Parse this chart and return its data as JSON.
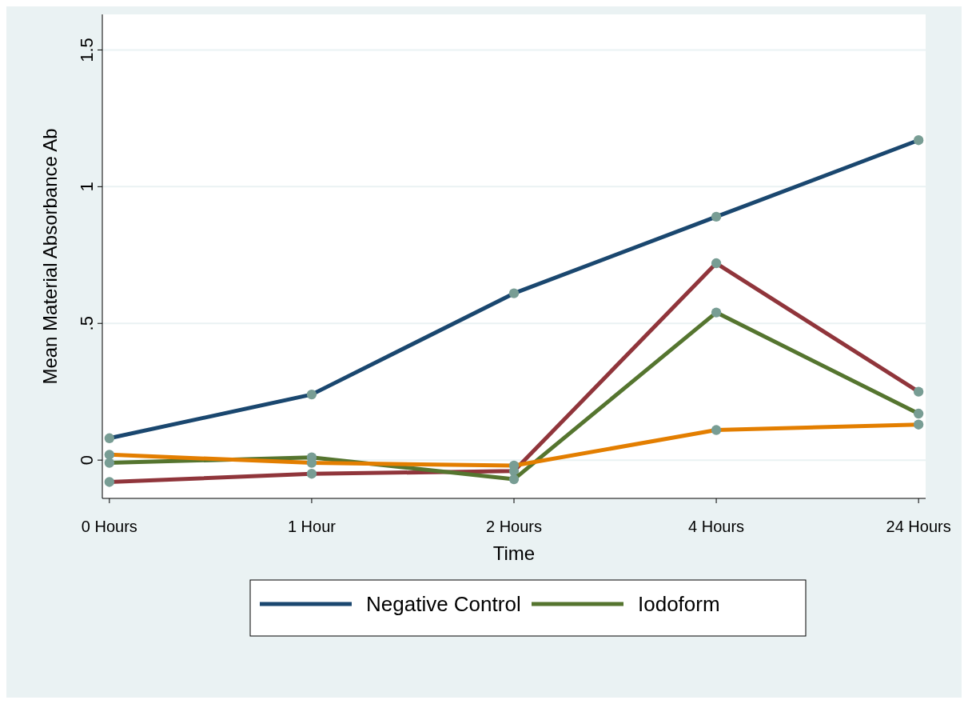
{
  "chart_data": {
    "type": "line",
    "xlabel": "Time",
    "ylabel": "Mean Material Absorbance Ab",
    "categories": [
      "0 Hours",
      "1 Hour",
      "2 Hours",
      "4 Hours",
      "24 Hours"
    ],
    "series": [
      {
        "name": "Negative Control",
        "color": "#1a476f",
        "values": [
          0.08,
          0.24,
          0.61,
          0.89,
          1.17
        ]
      },
      {
        "color": "#90353b",
        "values": [
          -0.08,
          -0.05,
          -0.04,
          0.72,
          0.25
        ]
      },
      {
        "name": "Iodoform",
        "color": "#55752f",
        "values": [
          -0.01,
          0.01,
          -0.07,
          0.54,
          0.17
        ]
      },
      {
        "color": "#e37e00",
        "values": [
          0.02,
          -0.01,
          -0.02,
          0.11,
          0.13
        ]
      }
    ],
    "ylim": [
      -0.14,
      1.63
    ],
    "yticks": [
      {
        "value": 0,
        "label": "0"
      },
      {
        "value": 0.5,
        "label": ".5"
      },
      {
        "value": 1,
        "label": "1"
      },
      {
        "value": 1.5,
        "label": "1.5"
      }
    ],
    "grid": "y",
    "legend": "bottom",
    "marker": "circle",
    "line_style": "solid"
  }
}
